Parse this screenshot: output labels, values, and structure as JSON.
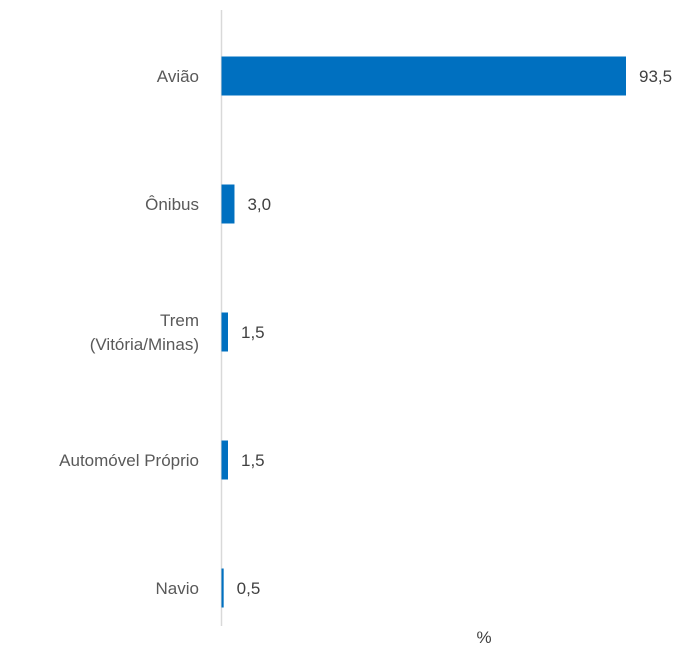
{
  "chart_data": {
    "type": "bar",
    "orientation": "horizontal",
    "categories": [
      [
        "Avião"
      ],
      [
        "Ônibus"
      ],
      [
        "Trem",
        "(Vitória/Minas)"
      ],
      [
        "Automóvel Próprio"
      ],
      [
        "Navio"
      ]
    ],
    "series": [
      {
        "values": [
          93.5,
          3.0,
          1.5,
          1.5,
          0.5
        ]
      }
    ],
    "value_labels": [
      "93,5",
      "3,0",
      "1,5",
      "1,5",
      "0,5"
    ],
    "xlabel": "%",
    "xlim": [
      0,
      93.5
    ],
    "grid": false,
    "bar_color": "#0070C0",
    "axis_color": "#D9D9D9"
  }
}
